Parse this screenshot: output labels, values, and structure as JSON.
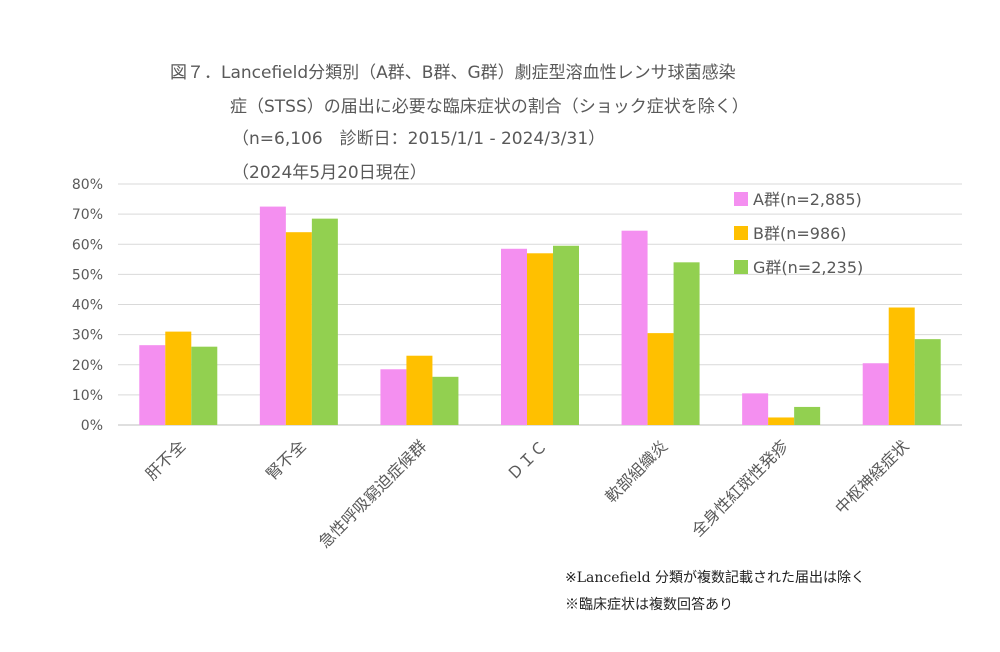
{
  "title_lines": [
    "図７．Lancefield分類別（A群、B群、G群）劇症型溶血性レンサ球菌感染",
    "症（STSS）の届出に必要な臨床症状の割合（ショック症状を除く）",
    "（n=6,106　診断日：2015/1/1 - 2024/3/31）",
    "（2024年5月20日現在）"
  ],
  "notes": [
    "※Lancefield 分類が複数記載された届出は除く",
    "※臨床症状は複数回答あり"
  ],
  "chart_data": {
    "type": "bar",
    "categories": [
      "肝不全",
      "腎不全",
      "急性呼吸窮迫症候群",
      "ＤＩＣ",
      "軟部組織炎",
      "全身性紅斑性発疹",
      "中枢神経症状"
    ],
    "series": [
      {
        "name": "A群(n=2,885)",
        "color": "#F48FF0",
        "values": [
          26.5,
          72.5,
          18.5,
          58.5,
          64.5,
          10.5,
          20.5
        ]
      },
      {
        "name": "B群(n=986)",
        "color": "#FFC000",
        "values": [
          31,
          64,
          23,
          57,
          30.5,
          2.5,
          39
        ]
      },
      {
        "name": "G群(n=2,235)",
        "color": "#92D050",
        "values": [
          26,
          68.5,
          16,
          59.5,
          54,
          6,
          28.5
        ]
      }
    ],
    "yticks": [
      "0%",
      "10%",
      "20%",
      "30%",
      "40%",
      "50%",
      "60%",
      "70%",
      "80%"
    ],
    "ylim": [
      0,
      80
    ],
    "grid": true,
    "legend_position": "top-right"
  }
}
